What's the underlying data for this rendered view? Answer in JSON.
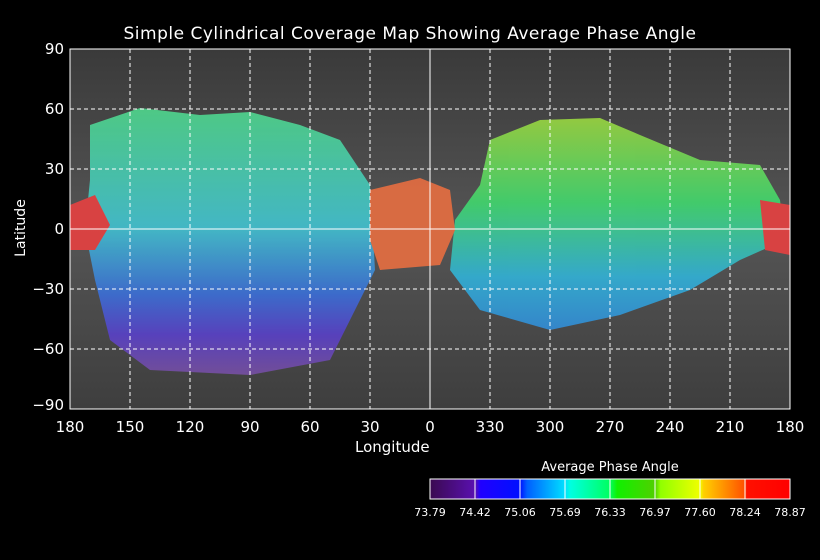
{
  "title": "Simple Cylindrical Coverage Map Showing Average Phase Angle",
  "chart_data": {
    "type": "heatmap",
    "title": "Simple Cylindrical Coverage Map Showing Average Phase Angle",
    "xlabel": "Longitude",
    "ylabel": "Latitude",
    "x_ticks": [
      "180",
      "150",
      "120",
      "90",
      "60",
      "30",
      "0",
      "330",
      "300",
      "270",
      "240",
      "210",
      "180"
    ],
    "y_ticks": [
      "90",
      "60",
      "30",
      "0",
      "−30",
      "−60",
      "−90"
    ],
    "xlim": [
      180,
      -180
    ],
    "ylim": [
      -90,
      90
    ],
    "grid": true,
    "colorbar": {
      "title": "Average Phase Angle",
      "ticks": [
        "73.79",
        "74.42",
        "75.06",
        "75.69",
        "76.33",
        "76.97",
        "77.60",
        "78.24",
        "78.87"
      ],
      "range": [
        73.79,
        78.87
      ],
      "colors": [
        "#3a0a5a",
        "#5a10b0",
        "#0000ff",
        "#0090ff",
        "#00ffe0",
        "#00ff60",
        "#20e000",
        "#a0ff00",
        "#ffff00",
        "#ffb000",
        "#ff6000",
        "#ff0000"
      ]
    }
  }
}
